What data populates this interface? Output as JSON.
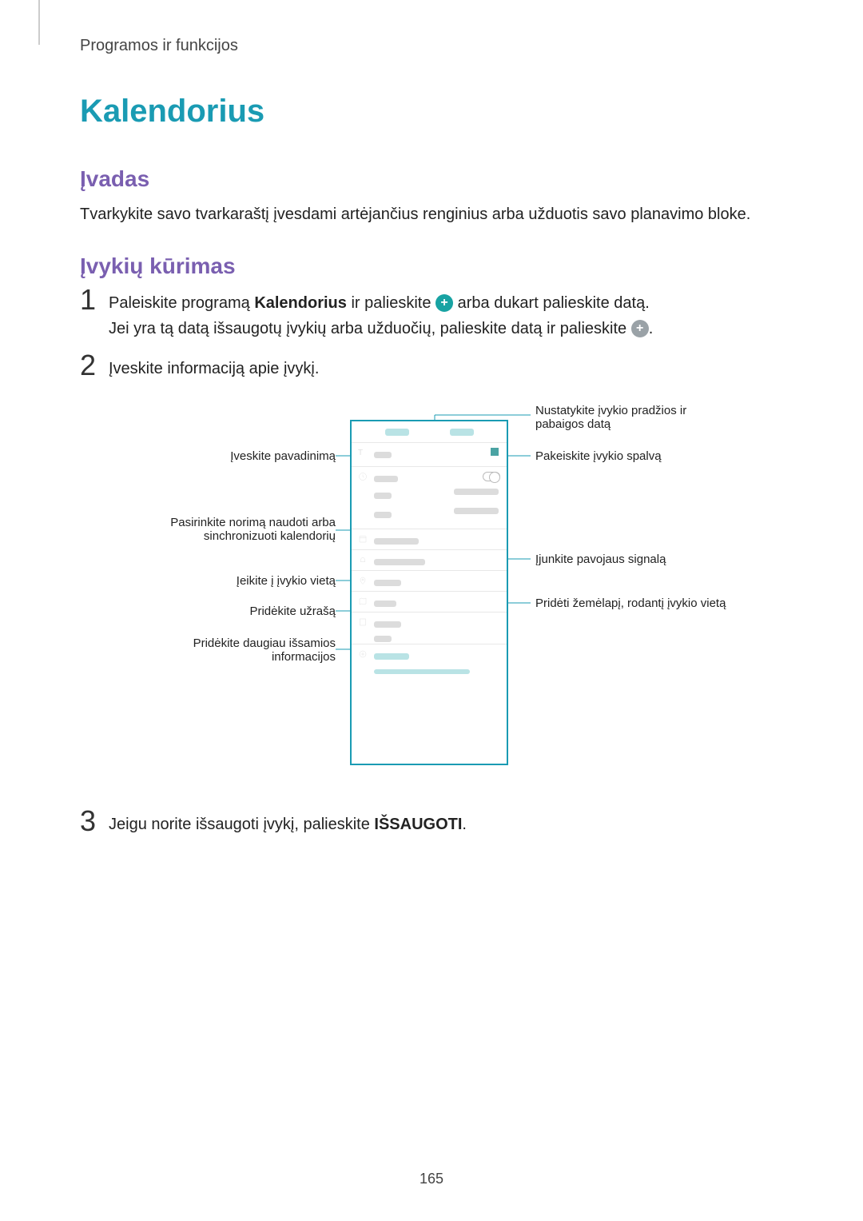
{
  "colors": {
    "accent_blue": "#1a9bb3",
    "accent_purple": "#7a5fb0",
    "icon_teal": "#18a3a3",
    "icon_gray": "#9aa2a7",
    "blur_teal": "#b9e3e5",
    "blur_gray": "#dcdcdc",
    "color_square": "#4aa3a3",
    "callout_line": "#1a9bb3"
  },
  "header": "Programos ir funkcijos",
  "title": "Kalendorius",
  "intro_heading": "Įvadas",
  "intro_body": "Tvarkykite savo tvarkaraštį įvesdami artėjančius renginius arba užduotis savo planavimo bloke.",
  "create_heading": "Įvykių kūrimas",
  "step1_a": "Paleiskite programą ",
  "step1_app": "Kalendorius",
  "step1_b": " ir palieskite ",
  "step1_c": " arba dukart palieskite datą.",
  "step1_line2a": "Jei yra tą datą išsaugotų įvykių arba užduočių, palieskite datą ir palieskite ",
  "step1_line2b": ".",
  "step2": "Įveskite informaciją apie įvykį.",
  "step3_a": "Jeigu norite išsaugoti įvykį, palieskite ",
  "step3_b": "IŠSAUGOTI",
  "step3_c": ".",
  "labels_left": {
    "title": "Įveskite pavadinimą",
    "calendar": "Pasirinkite norimą naudoti arba sinchronizuoti kalendorių",
    "location": "Įeikite į įvykio vietą",
    "note": "Pridėkite užrašą",
    "moreinfo": "Pridėkite daugiau išsamios informacijos"
  },
  "labels_right": {
    "dates": "Nustatykite įvykio pradžios ir pabaigos datą",
    "color": "Pakeiskite įvykio spalvą",
    "alarm": "Įjunkite pavojaus signalą",
    "map": "Pridėti žemėlapį, rodantį įvykio vietą"
  },
  "page_number": "165"
}
